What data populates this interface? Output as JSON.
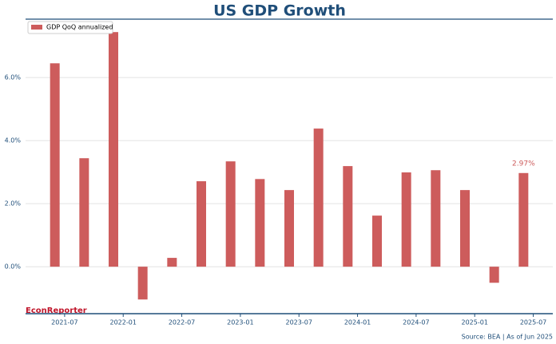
{
  "chart_data": {
    "type": "bar",
    "title": "US GDP Growth",
    "x": [
      "2021-06",
      "2021-09",
      "2021-12",
      "2022-03",
      "2022-06",
      "2022-09",
      "2022-12",
      "2023-03",
      "2023-06",
      "2023-09",
      "2023-12",
      "2024-03",
      "2024-06",
      "2024-09",
      "2024-12",
      "2025-03",
      "2025-06"
    ],
    "series": [
      {
        "name": "GDP QoQ annualized",
        "color": "#cd5c5c",
        "values": [
          6.45,
          3.44,
          7.44,
          -1.04,
          0.28,
          2.71,
          3.34,
          2.78,
          2.43,
          4.38,
          3.19,
          1.62,
          2.99,
          3.06,
          2.43,
          -0.51,
          2.97
        ],
        "value_labels": [
          null,
          null,
          null,
          null,
          null,
          null,
          null,
          null,
          null,
          null,
          null,
          null,
          null,
          null,
          null,
          null,
          "2.97%"
        ]
      }
    ],
    "xlim": [
      "2021-03",
      "2025-09"
    ],
    "xticks": [
      "2021-07",
      "2022-01",
      "2022-07",
      "2023-01",
      "2023-07",
      "2024-01",
      "2024-07",
      "2025-01",
      "2025-07"
    ],
    "ylim": [
      -1.49,
      7.85
    ],
    "yticks": [
      {
        "value": 0,
        "label": "0.0%"
      },
      {
        "value": 2,
        "label": "2.0%"
      },
      {
        "value": 4,
        "label": "4.0%"
      },
      {
        "value": 6,
        "label": "6.0%"
      }
    ],
    "grid": true,
    "legend": "upper left",
    "brand": "EconReporter",
    "source": "Source: BEA | As of Jun 2025"
  }
}
